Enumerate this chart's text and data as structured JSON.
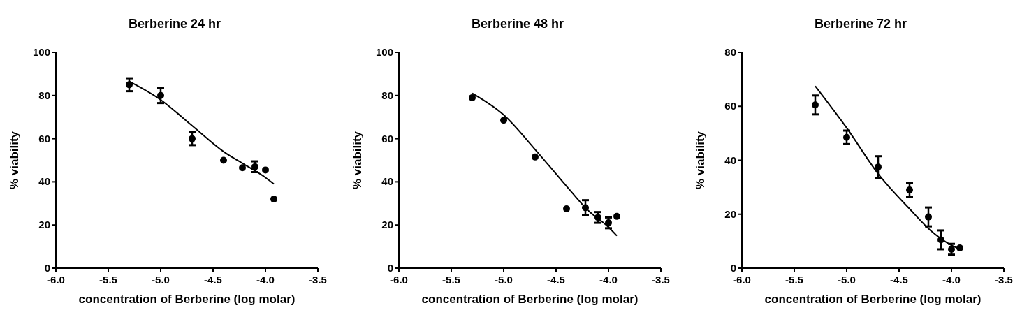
{
  "chart_data": [
    {
      "type": "scatter",
      "title": "Berberine 24 hr",
      "xlabel": "concentration of Berberine (log molar)",
      "ylabel": "% viability",
      "xlim": [
        -6,
        -3.5
      ],
      "xticks": [
        {
          "value": -6,
          "label": "-6.0"
        },
        {
          "value": -5.5,
          "label": "-5.5"
        },
        {
          "value": -5,
          "label": "-5.0"
        },
        {
          "value": -4.5,
          "label": "-4.5"
        },
        {
          "value": -4,
          "label": "-4.0"
        },
        {
          "value": -3.5,
          "label": "-3.5"
        }
      ],
      "ylim": [
        0,
        100
      ],
      "yticks": [
        0,
        20,
        40,
        60,
        80,
        100
      ],
      "series": [
        {
          "marker": "circle",
          "color": "#000000",
          "x": [
            -5.3,
            -5.0,
            -4.7,
            -4.4,
            -4.22,
            -4.1,
            -4.0,
            -3.92
          ],
          "values": [
            85,
            80,
            60,
            50,
            46.5,
            47,
            45.5,
            32
          ],
          "errors": [
            3,
            3.5,
            3,
            null,
            null,
            2.5,
            null,
            null
          ]
        },
        {
          "type": "line",
          "marker": "none",
          "color": "#000000",
          "x": [
            -5.3,
            -5.0,
            -4.7,
            -4.4,
            -4.2,
            -4.0,
            -3.92
          ],
          "values": [
            86.5,
            78,
            66,
            54,
            48,
            42,
            39
          ]
        }
      ]
    },
    {
      "type": "scatter",
      "title": "Berberine 48 hr",
      "xlabel": "concentration of Berberine (log molar)",
      "ylabel": "% viability",
      "xlim": [
        -6,
        -3.5
      ],
      "xticks": [
        {
          "value": -6,
          "label": "-6.0"
        },
        {
          "value": -5.5,
          "label": "-5.5"
        },
        {
          "value": -5,
          "label": "-5.0"
        },
        {
          "value": -4.5,
          "label": "-4.5"
        },
        {
          "value": -4,
          "label": "-4.0"
        },
        {
          "value": -3.5,
          "label": "-3.5"
        }
      ],
      "ylim": [
        0,
        100
      ],
      "yticks": [
        0,
        20,
        40,
        60,
        80,
        100
      ],
      "series": [
        {
          "marker": "circle",
          "color": "#000000",
          "x": [
            -5.3,
            -5.0,
            -4.7,
            -4.4,
            -4.22,
            -4.1,
            -4.0,
            -3.92
          ],
          "values": [
            79,
            68.5,
            51.5,
            27.5,
            28,
            23.5,
            21,
            24
          ],
          "errors": [
            null,
            null,
            null,
            null,
            3.5,
            2.5,
            2.5,
            null
          ]
        },
        {
          "type": "line",
          "marker": "none",
          "color": "#000000",
          "x": [
            -5.3,
            -5.0,
            -4.7,
            -4.4,
            -4.2,
            -4.0,
            -3.92
          ],
          "values": [
            81,
            71,
            55,
            38,
            27,
            19,
            15
          ]
        }
      ]
    },
    {
      "type": "scatter",
      "title": "Berberine 72 hr",
      "xlabel": "concentration of Berberine (log molar)",
      "ylabel": "% viability",
      "xlim": [
        -6,
        -3.5
      ],
      "xticks": [
        {
          "value": -6,
          "label": "-6.0"
        },
        {
          "value": -5.5,
          "label": "-5.5"
        },
        {
          "value": -5,
          "label": "-5.0"
        },
        {
          "value": -4.5,
          "label": "-4.5"
        },
        {
          "value": -4,
          "label": "-4.0"
        },
        {
          "value": -3.5,
          "label": "-3.5"
        }
      ],
      "ylim": [
        0,
        80
      ],
      "yticks": [
        0,
        20,
        40,
        60,
        80
      ],
      "series": [
        {
          "marker": "circle",
          "color": "#000000",
          "x": [
            -5.3,
            -5.0,
            -4.7,
            -4.4,
            -4.22,
            -4.1,
            -4.0,
            -3.92
          ],
          "values": [
            60.5,
            48.5,
            37.5,
            29,
            19,
            10.5,
            7,
            7.5
          ],
          "errors": [
            3.5,
            2.5,
            4,
            2.5,
            3.5,
            3.5,
            2,
            null
          ]
        },
        {
          "type": "line",
          "marker": "none",
          "color": "#000000",
          "x": [
            -5.3,
            -5.0,
            -4.7,
            -4.4,
            -4.2,
            -4.0,
            -3.92
          ],
          "values": [
            67.5,
            52,
            35,
            22,
            14,
            8.5,
            7
          ]
        }
      ]
    }
  ]
}
